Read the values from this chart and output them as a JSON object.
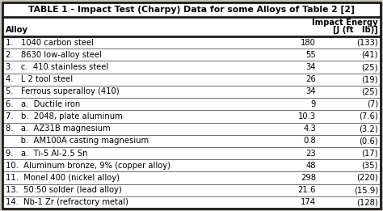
{
  "title": "TABLE 1 - Impact Test (Charpy) Data for some Alloys of Table 2 [2]",
  "col_header_left": "Alloy",
  "col_header_right_line1": "Impact Energy",
  "col_header_right_line2": "[J (ft   lb)]",
  "rows": [
    {
      "label": "1.   1040 carbon steel",
      "val_j": "180",
      "val_ft": "(133)"
    },
    {
      "label": "2.   8630 low-alloy steel",
      "val_j": "55",
      "val_ft": "(41)"
    },
    {
      "label": "3.   c.  410 stainless steel",
      "val_j": "34",
      "val_ft": "(25)"
    },
    {
      "label": "4.   L 2 tool steel",
      "val_j": "26",
      "val_ft": "(19)"
    },
    {
      "label": "5.   Ferrous superalloy (410)",
      "val_j": "34",
      "val_ft": "(25)"
    },
    {
      "label": "6.   a.  Ductile iron",
      "val_j": "9",
      "val_ft": "(7)"
    },
    {
      "label": "7.   b.  2048, plate aluminum",
      "val_j": "10.3",
      "val_ft": "(7.6)"
    },
    {
      "label": "8.   a.  AZ31B magnesium",
      "val_j": "4.3",
      "val_ft": "(3.2)"
    },
    {
      "label": "      b.  AM100A casting magnesium",
      "val_j": "0.8",
      "val_ft": "(0.6)"
    },
    {
      "label": "9.   a.  Ti-5 Al-2.5 Sn",
      "val_j": "23",
      "val_ft": "(17)"
    },
    {
      "label": "10.  Aluminum bronze, 9% (copper alloy)",
      "val_j": "48",
      "val_ft": "(35)"
    },
    {
      "label": "11.  Monel 400 (nickel alloy)",
      "val_j": "298",
      "val_ft": "(220)"
    },
    {
      "label": "13.  50:50 solder (lead alloy)",
      "val_j": "21.6",
      "val_ft": "(15.9)"
    },
    {
      "label": "14.  Nb-1 Zr (refractory metal)",
      "val_j": "174",
      "val_ft": "(128)"
    }
  ],
  "bg_color": "#c8c4bc",
  "table_bg": "#ffffff",
  "border_color": "#1a1a1a",
  "line_color": "#555555",
  "font_size": 7.2,
  "title_font_size": 7.8,
  "header_font_size": 7.2
}
